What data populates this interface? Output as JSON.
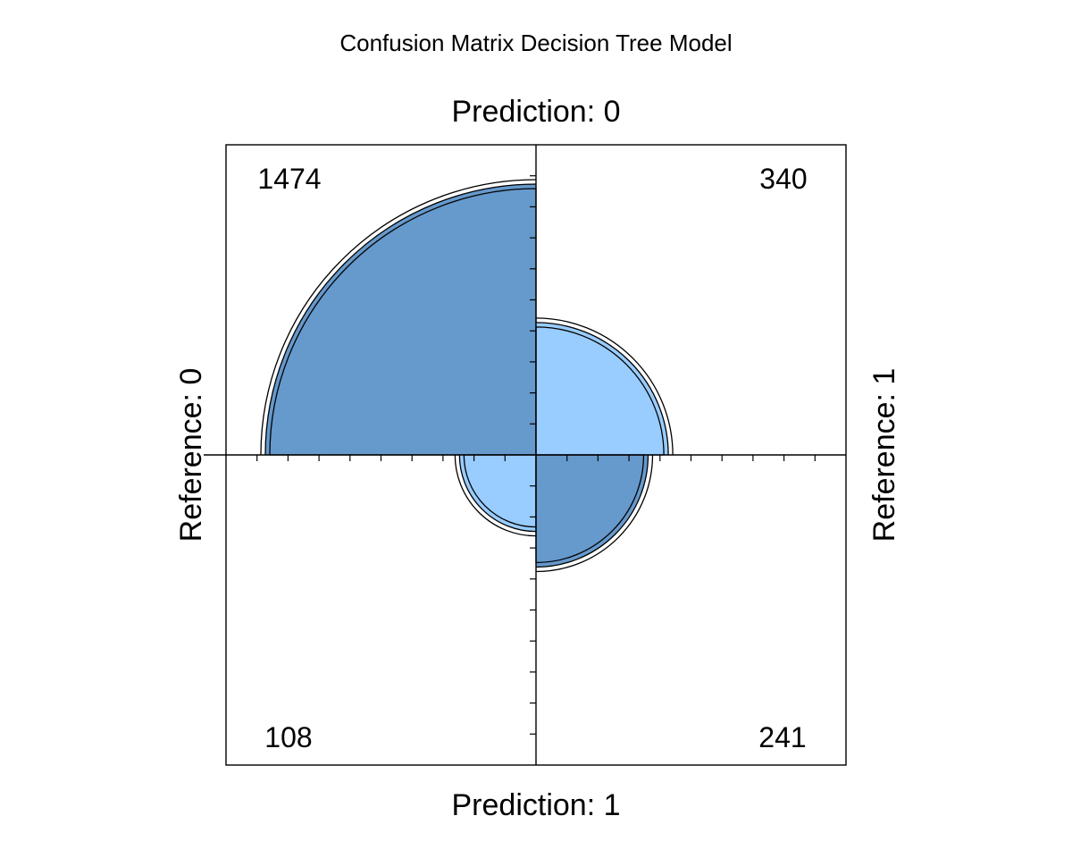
{
  "chart_data": {
    "type": "fourfold",
    "title": "Confusion Matrix Decision Tree Model",
    "top_label": "Prediction: 0",
    "bottom_label": "Prediction: 1",
    "left_label": "Reference: 0",
    "right_label": "Reference: 1",
    "cells": [
      {
        "position": "top-left",
        "value": 1474,
        "label": "1474"
      },
      {
        "position": "top-right",
        "value": 340,
        "label": "340"
      },
      {
        "position": "bottom-left",
        "value": 108,
        "label": "108"
      },
      {
        "position": "bottom-right",
        "value": 241,
        "label": "241"
      }
    ],
    "colors": {
      "diagonal": "#6699cc",
      "off_diagonal": "#99ccff",
      "stroke": "#000000"
    },
    "grid": false
  }
}
